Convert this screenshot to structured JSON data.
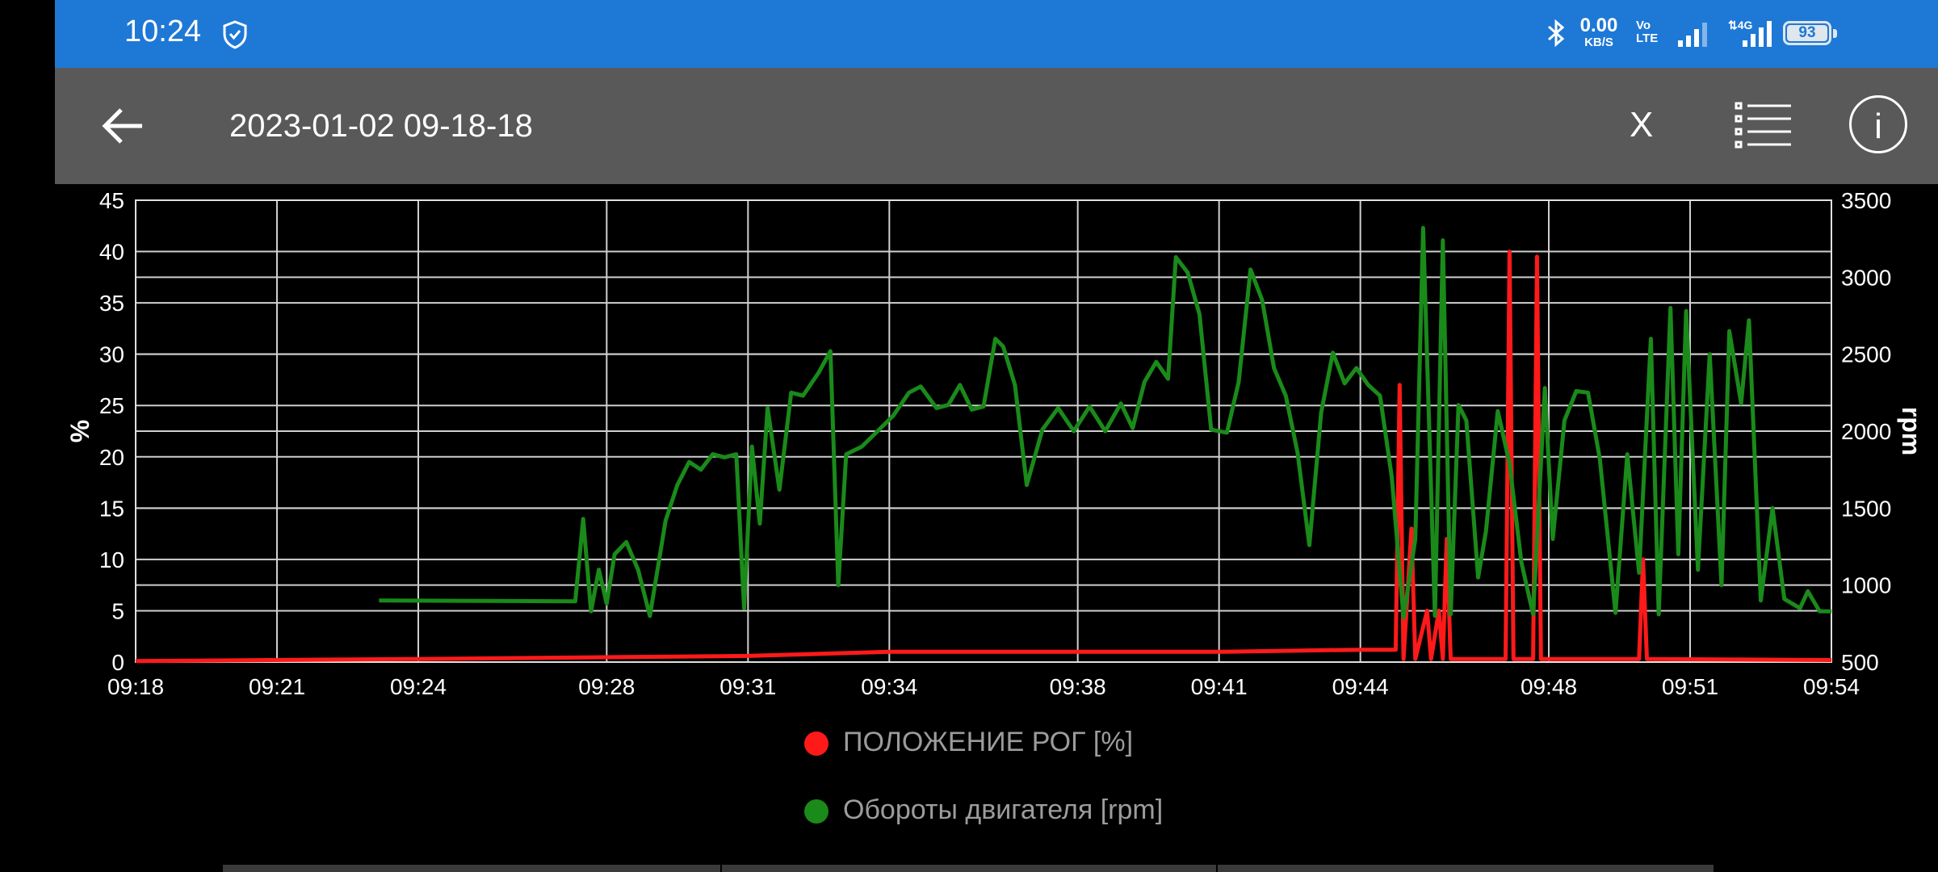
{
  "status_bar": {
    "time": "10:24",
    "net_speed_value": "0.00",
    "net_speed_unit": "KB/S",
    "volte": "Vo\nLTE",
    "network": "4G",
    "battery": "93",
    "icons": [
      "shield-check-icon",
      "bluetooth-icon",
      "signal-icon",
      "battery-icon"
    ]
  },
  "toolbar": {
    "title": "2023-01-02 09-18-18",
    "x_label": "X",
    "icons": [
      "back-arrow-icon",
      "list-icon",
      "info-icon"
    ],
    "info_glyph": "i"
  },
  "colors": {
    "status_bar": "#1e78d6",
    "toolbar": "#595959",
    "series_red": "#ff1a1a",
    "series_green": "#1a8a1a",
    "grid": "#ffffff"
  },
  "chart_data": {
    "type": "line",
    "grid": true,
    "legend_position": "bottom-center",
    "x_ticks": [
      "09:18",
      "09:21",
      "09:24",
      "09:28",
      "09:31",
      "09:34",
      "09:38",
      "09:41",
      "09:44",
      "09:48",
      "09:51",
      "09:54"
    ],
    "x_range": [
      "09:18",
      "09:54"
    ],
    "y_left": {
      "label": "%",
      "range": [
        0,
        45
      ],
      "ticks": [
        "0",
        "5",
        "10",
        "15",
        "20",
        "25",
        "30",
        "35",
        "40",
        "45"
      ]
    },
    "y_right": {
      "label": "rpm",
      "range": [
        500,
        3500
      ],
      "ticks": [
        "500",
        "1000",
        "1500",
        "2000",
        "2500",
        "3000",
        "3500"
      ]
    },
    "series": [
      {
        "name": "ПОЛОЖЕНИЕ РОГ [%]",
        "axis": "left",
        "color": "#ff1a1a",
        "points": [
          [
            "09:18",
            0.1
          ],
          [
            "09:24",
            0.3
          ],
          [
            "09:31",
            0.6
          ],
          [
            "09:34",
            1.0
          ],
          [
            "09:38",
            1.0
          ],
          [
            "09:41",
            1.0
          ],
          [
            "09:44",
            1.2
          ],
          [
            "09:44:45",
            1.2
          ],
          [
            "09:44:50",
            27.0
          ],
          [
            "09:44:55",
            0.3
          ],
          [
            "09:45:05",
            13.0
          ],
          [
            "09:45:10",
            0.3
          ],
          [
            "09:45:25",
            5.0
          ],
          [
            "09:45:30",
            0.3
          ],
          [
            "09:45:40",
            5.0
          ],
          [
            "09:45:45",
            0.3
          ],
          [
            "09:45:50",
            12.0
          ],
          [
            "09:45:55",
            0.3
          ],
          [
            "09:47:05",
            0.3
          ],
          [
            "09:47:10",
            40.0
          ],
          [
            "09:47:15",
            0.3
          ],
          [
            "09:47:40",
            0.3
          ],
          [
            "09:47:45",
            39.5
          ],
          [
            "09:47:50",
            0.3
          ],
          [
            "09:49:55",
            0.3
          ],
          [
            "09:50:00",
            10.0
          ],
          [
            "09:50:05",
            0.3
          ],
          [
            "09:54",
            0.2
          ]
        ]
      },
      {
        "name": "Обороты двигателя [rpm]",
        "axis": "right",
        "color": "#1a8a1a",
        "points": [
          [
            "09:23:10",
            900
          ],
          [
            "09:27:20",
            895
          ],
          [
            "09:27:30",
            1430
          ],
          [
            "09:27:40",
            830
          ],
          [
            "09:27:50",
            1100
          ],
          [
            "09:28:00",
            880
          ],
          [
            "09:28:10",
            1200
          ],
          [
            "09:28:25",
            1280
          ],
          [
            "09:28:40",
            1100
          ],
          [
            "09:28:55",
            800
          ],
          [
            "09:29:15",
            1420
          ],
          [
            "09:29:30",
            1650
          ],
          [
            "09:29:45",
            1800
          ],
          [
            "09:30:00",
            1750
          ],
          [
            "09:30:15",
            1850
          ],
          [
            "09:30:30",
            1830
          ],
          [
            "09:30:45",
            1850
          ],
          [
            "09:30:55",
            850
          ],
          [
            "09:31:05",
            1900
          ],
          [
            "09:31:15",
            1400
          ],
          [
            "09:31:25",
            2150
          ],
          [
            "09:31:40",
            1620
          ],
          [
            "09:31:55",
            2250
          ],
          [
            "09:32:10",
            2230
          ],
          [
            "09:32:30",
            2380
          ],
          [
            "09:32:45",
            2520
          ],
          [
            "09:32:55",
            1000
          ],
          [
            "09:33:05",
            1850
          ],
          [
            "09:33:25",
            1900
          ],
          [
            "09:33:45",
            2000
          ],
          [
            "09:34:05",
            2100
          ],
          [
            "09:34:25",
            2250
          ],
          [
            "09:34:40",
            2290
          ],
          [
            "09:35:00",
            2150
          ],
          [
            "09:35:15",
            2170
          ],
          [
            "09:35:30",
            2300
          ],
          [
            "09:35:45",
            2140
          ],
          [
            "09:36:00",
            2160
          ],
          [
            "09:36:15",
            2600
          ],
          [
            "09:36:25",
            2550
          ],
          [
            "09:36:40",
            2300
          ],
          [
            "09:36:55",
            1650
          ],
          [
            "09:37:15",
            2010
          ],
          [
            "09:37:35",
            2150
          ],
          [
            "09:37:55",
            2000
          ],
          [
            "09:38:15",
            2160
          ],
          [
            "09:38:35",
            2000
          ],
          [
            "09:38:55",
            2180
          ],
          [
            "09:39:10",
            2020
          ],
          [
            "09:39:25",
            2320
          ],
          [
            "09:39:40",
            2450
          ],
          [
            "09:39:55",
            2340
          ],
          [
            "09:40:05",
            3130
          ],
          [
            "09:40:20",
            3030
          ],
          [
            "09:40:35",
            2760
          ],
          [
            "09:40:50",
            2010
          ],
          [
            "09:41:10",
            1990
          ],
          [
            "09:41:25",
            2320
          ],
          [
            "09:41:40",
            3050
          ],
          [
            "09:41:55",
            2850
          ],
          [
            "09:42:10",
            2410
          ],
          [
            "09:42:25",
            2230
          ],
          [
            "09:42:40",
            1860
          ],
          [
            "09:42:55",
            1260
          ],
          [
            "09:43:10",
            2120
          ],
          [
            "09:43:25",
            2510
          ],
          [
            "09:43:40",
            2310
          ],
          [
            "09:43:55",
            2410
          ],
          [
            "09:44:10",
            2300
          ],
          [
            "09:44:25",
            2230
          ],
          [
            "09:44:40",
            1700
          ],
          [
            "09:44:55",
            790
          ],
          [
            "09:45:10",
            1300
          ],
          [
            "09:45:20",
            3320
          ],
          [
            "09:45:35",
            800
          ],
          [
            "09:45:45",
            3240
          ],
          [
            "09:45:55",
            810
          ],
          [
            "09:46:05",
            2170
          ],
          [
            "09:46:15",
            2070
          ],
          [
            "09:46:30",
            1050
          ],
          [
            "09:46:40",
            1350
          ],
          [
            "09:46:55",
            2130
          ],
          [
            "09:47:10",
            1790
          ],
          [
            "09:47:25",
            1150
          ],
          [
            "09:47:40",
            810
          ],
          [
            "09:47:55",
            2280
          ],
          [
            "09:48:05",
            1300
          ],
          [
            "09:48:20",
            2070
          ],
          [
            "09:48:35",
            2260
          ],
          [
            "09:48:50",
            2250
          ],
          [
            "09:49:05",
            1820
          ],
          [
            "09:49:25",
            820
          ],
          [
            "09:49:40",
            1850
          ],
          [
            "09:49:55",
            1080
          ],
          [
            "09:50:10",
            2600
          ],
          [
            "09:50:20",
            810
          ],
          [
            "09:50:35",
            2800
          ],
          [
            "09:50:45",
            1200
          ],
          [
            "09:50:55",
            2780
          ],
          [
            "09:51:10",
            1100
          ],
          [
            "09:51:25",
            2500
          ],
          [
            "09:51:40",
            1000
          ],
          [
            "09:51:50",
            2650
          ],
          [
            "09:52:05",
            2180
          ],
          [
            "09:52:15",
            2720
          ],
          [
            "09:52:30",
            900
          ],
          [
            "09:52:45",
            1500
          ],
          [
            "09:53:00",
            910
          ],
          [
            "09:53:20",
            850
          ],
          [
            "09:53:30",
            960
          ],
          [
            "09:53:45",
            830
          ],
          [
            "09:54:00",
            830
          ]
        ]
      }
    ]
  }
}
